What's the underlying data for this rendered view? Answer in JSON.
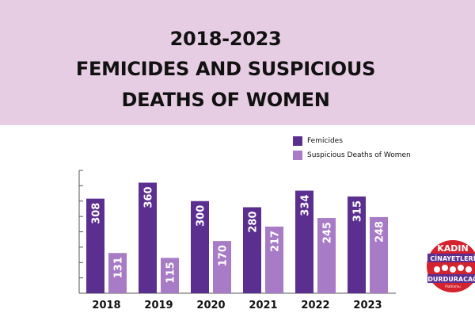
{
  "title": {
    "line1": "2018-2023",
    "line2": "FEMICIDES AND SUSPICIOUS",
    "line3": "DEATHS OF WOMEN"
  },
  "colors": {
    "header_bg": "#e6cde3",
    "femicides": "#5b2f8f",
    "suspicious": "#a77bc5",
    "logo_red": "#d4232e",
    "logo_purple": "#5b2f8f"
  },
  "logo": {
    "text1": "KADIN",
    "text2": "CİNAYETLERİ",
    "text3": "DURDURACAĞ",
    "text4": "Platformu"
  },
  "chart_data": {
    "type": "bar",
    "categories": [
      "2018",
      "2019",
      "2020",
      "2021",
      "2022",
      "2023"
    ],
    "series": [
      {
        "name": "Femicides",
        "values": [
          308,
          360,
          300,
          280,
          334,
          315
        ]
      },
      {
        "name": "Suspicious Deaths of Women",
        "values": [
          131,
          115,
          170,
          217,
          245,
          248
        ]
      }
    ],
    "ylim": [
      0,
      400
    ],
    "grid": false,
    "legend": "top-right",
    "data_labels": "inside-top-rotated"
  }
}
